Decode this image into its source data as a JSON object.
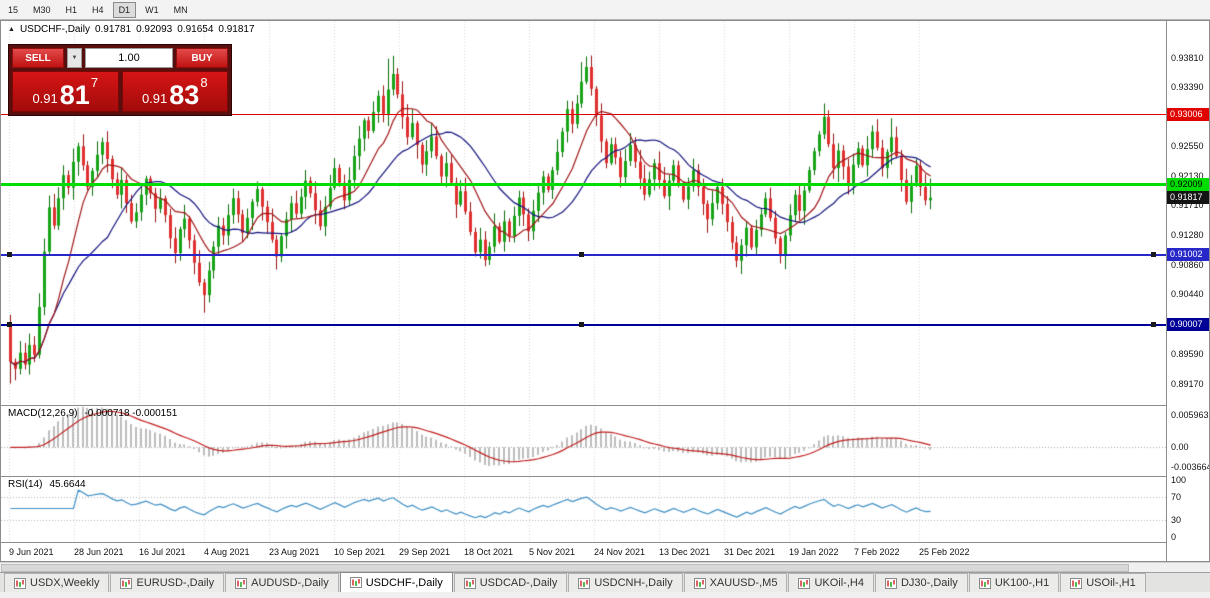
{
  "icons": {
    "collapse_arrow": "▲",
    "dropdown_arrow": "▼"
  },
  "toolbar": {
    "timeframes": [
      {
        "label": "15",
        "active": false
      },
      {
        "label": "M30",
        "active": false
      },
      {
        "label": "H1",
        "active": false
      },
      {
        "label": "H4",
        "active": false
      },
      {
        "label": "D1",
        "active": true
      },
      {
        "label": "W1",
        "active": false
      },
      {
        "label": "MN",
        "active": false
      }
    ]
  },
  "chart": {
    "info": {
      "symbol": "USDCHF-,Daily",
      "open": "0.91781",
      "high": "0.92093",
      "low": "0.91654",
      "close": "0.91817"
    },
    "trade_panel": {
      "sell_label": "SELL",
      "buy_label": "BUY",
      "volume": "1.00",
      "bid": {
        "prefix": "0.91",
        "big": "81",
        "sup": "7"
      },
      "ask": {
        "prefix": "0.91",
        "big": "83",
        "sup": "8"
      }
    },
    "price_axis": {
      "min": 0.8895,
      "max": 0.9425,
      "labels": [
        "0.93810",
        "0.93390",
        "0.92970",
        "0.92550",
        "0.92130",
        "0.91710",
        "0.91280",
        "0.90860",
        "0.90440",
        "0.89590",
        "0.89170"
      ]
    },
    "hlines": [
      {
        "name": "resistance",
        "value": 0.93006,
        "label": "0.93006",
        "color": "#e00000",
        "thickness": 1,
        "text": "#ffffff",
        "handles": false
      },
      {
        "name": "pivot",
        "value": 0.92009,
        "label": "0.92009",
        "color": "#00dd00",
        "thickness": 3,
        "text": "#000000",
        "handles": false
      },
      {
        "name": "support-1",
        "value": 0.91002,
        "label": "0.91002",
        "color": "#2828c8",
        "thickness": 2,
        "text": "#ffffff",
        "handles": true
      },
      {
        "name": "support-2",
        "value": 0.90007,
        "label": "0.90007",
        "color": "#000096",
        "thickness": 2,
        "text": "#ffffff",
        "handles": true
      }
    ],
    "current_price_tag": {
      "value": 0.91817,
      "label": "0.91817",
      "bg": "#141414",
      "text": "#ffffff"
    },
    "dates": [
      "9 Jun 2021",
      "28 Jun 2021",
      "16 Jul 2021",
      "4 Aug 2021",
      "23 Aug 2021",
      "10 Sep 2021",
      "29 Sep 2021",
      "18 Oct 2021",
      "5 Nov 2021",
      "24 Nov 2021",
      "13 Dec 2021",
      "31 Dec 2021",
      "19 Jan 2022",
      "7 Feb 2022",
      "25 Feb 2022"
    ]
  },
  "chart_data": {
    "type": "candlestick",
    "title": "USDCHF-,Daily",
    "first_open": 0.8998,
    "closes": [
      0.8948,
      0.8938,
      0.8961,
      0.8944,
      0.8972,
      0.8958,
      0.9026,
      0.9105,
      0.9168,
      0.9142,
      0.9181,
      0.9214,
      0.9196,
      0.9233,
      0.9255,
      0.9228,
      0.9197,
      0.922,
      0.9243,
      0.9261,
      0.9237,
      0.9208,
      0.9186,
      0.9207,
      0.9174,
      0.9148,
      0.9161,
      0.9186,
      0.9209,
      0.9188,
      0.9166,
      0.9181,
      0.9157,
      0.9124,
      0.9103,
      0.9137,
      0.9152,
      0.9121,
      0.9089,
      0.9061,
      0.9043,
      0.9078,
      0.9112,
      0.9142,
      0.9128,
      0.9157,
      0.9181,
      0.9158,
      0.9132,
      0.9153,
      0.9176,
      0.9194,
      0.9169,
      0.9147,
      0.9122,
      0.9098,
      0.9127,
      0.9151,
      0.9174,
      0.9159,
      0.9183,
      0.9206,
      0.9188,
      0.9164,
      0.9141,
      0.9169,
      0.9196,
      0.9224,
      0.9203,
      0.9178,
      0.9207,
      0.9241,
      0.9266,
      0.9292,
      0.9277,
      0.9304,
      0.9327,
      0.9301,
      0.9336,
      0.9358,
      0.9329,
      0.9297,
      0.9268,
      0.9288,
      0.9257,
      0.9229,
      0.9248,
      0.9269,
      0.9241,
      0.9212,
      0.9231,
      0.9203,
      0.9172,
      0.9191,
      0.9162,
      0.9133,
      0.9104,
      0.9122,
      0.9093,
      0.9112,
      0.9141,
      0.9119,
      0.9148,
      0.9127,
      0.9156,
      0.9182,
      0.9158,
      0.9134,
      0.9163,
      0.9189,
      0.9212,
      0.9193,
      0.9221,
      0.9247,
      0.9276,
      0.9308,
      0.9287,
      0.9316,
      0.9347,
      0.9368,
      0.9337,
      0.9299,
      0.9262,
      0.9231,
      0.9258,
      0.9239,
      0.9211,
      0.9234,
      0.9257,
      0.9233,
      0.9209,
      0.9186,
      0.9208,
      0.9231,
      0.9207,
      0.9184,
      0.9206,
      0.9228,
      0.9202,
      0.9179,
      0.9198,
      0.9221,
      0.9197,
      0.9173,
      0.9151,
      0.9174,
      0.9197,
      0.9173,
      0.9147,
      0.9118,
      0.9092,
      0.9114,
      0.9139,
      0.9111,
      0.9136,
      0.9158,
      0.9181,
      0.9153,
      0.9124,
      0.9099,
      0.9128,
      0.9157,
      0.9186,
      0.9163,
      0.9192,
      0.9221,
      0.9248,
      0.9272,
      0.9297,
      0.9258,
      0.9224,
      0.9249,
      0.9226,
      0.9201,
      0.9229,
      0.9252,
      0.9228,
      0.9251,
      0.9276,
      0.9253,
      0.9224,
      0.9247,
      0.9268,
      0.9241,
      0.9207,
      0.9176,
      0.9203,
      0.9227,
      0.9197,
      0.9178,
      0.91817
    ],
    "last_candle": {
      "open": 0.91781,
      "high": 0.92093,
      "low": 0.91654,
      "close": 0.91817
    },
    "spikes": {
      "0": {
        "low": 0.8917
      },
      "40": {
        "low": 0.9018
      },
      "78": {
        "high": 0.938
      },
      "79": {
        "high": 0.9384
      },
      "118": {
        "high": 0.9375
      },
      "119": {
        "high": 0.9383
      },
      "150": {
        "low": 0.9086
      },
      "159": {
        "low": 0.9088
      },
      "168": {
        "high": 0.9316
      },
      "182": {
        "high": 0.9295
      }
    },
    "ma_fast_period": 10,
    "ma_slow_period": 21
  },
  "macd": {
    "title": "MACD(12,26,9)",
    "values_text": "-0.000718 -0.000151",
    "params": {
      "fast": 12,
      "slow": 26,
      "signal": 9
    },
    "range": {
      "min": -0.0046,
      "max": 0.0068
    },
    "axis_labels": [
      {
        "v": 0.005963,
        "label": "0.005963"
      },
      {
        "v": 0,
        "label": "0.00"
      },
      {
        "v": -0.003664,
        "label": "-0.003664"
      }
    ]
  },
  "rsi": {
    "title": "RSI(14)",
    "value_text": "45.6644",
    "period": 14,
    "levels": [
      70,
      30
    ],
    "axis_labels": [
      {
        "v": 100,
        "label": "100"
      },
      {
        "v": 70,
        "label": "70"
      },
      {
        "v": 30,
        "label": "30"
      },
      {
        "v": 0,
        "label": "0"
      }
    ]
  },
  "tabs": [
    {
      "label": "USDX,Weekly",
      "active": false
    },
    {
      "label": "EURUSD-,Daily",
      "active": false
    },
    {
      "label": "AUDUSD-,Daily",
      "active": false
    },
    {
      "label": "USDCHF-,Daily",
      "active": true
    },
    {
      "label": "USDCAD-,Daily",
      "active": false
    },
    {
      "label": "USDCNH-,Daily",
      "active": false
    },
    {
      "label": "XAUUSD-,M5",
      "active": false
    },
    {
      "label": "UKOil-,H4",
      "active": false
    },
    {
      "label": "DJ30-,Daily",
      "active": false
    },
    {
      "label": "UK100-,H1",
      "active": false
    },
    {
      "label": "USOil-,H1",
      "active": false
    }
  ],
  "colors": {
    "up": "#18a418",
    "up_stroke": "#0b6e0b",
    "down": "#e03030",
    "down_stroke": "#9a1414",
    "ma_fast": "#a01818",
    "ma_slow": "#15157e",
    "macd_hist": "#bdbdbd",
    "macd_signal": "#c02020",
    "rsi_line": "#3f8fc4",
    "grid": "#d9d9d9"
  }
}
